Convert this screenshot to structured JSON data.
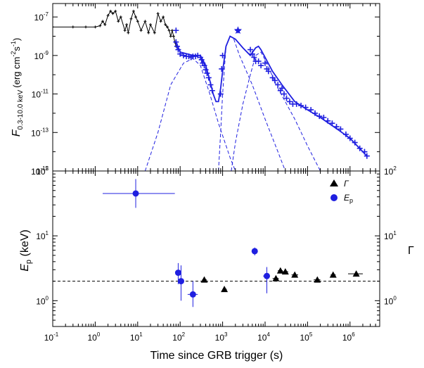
{
  "chart_data": [
    {
      "type": "line",
      "panel": "top",
      "xscale": "log",
      "yscale": "log",
      "xlim": [
        0.1,
        5000000
      ],
      "ylim": [
        1e-15,
        5e-07
      ],
      "ylabel": "F 0.3-10.0 keV (erg cm-2 s-1)",
      "ylabel_main": "F",
      "ylabel_sub": "0.3-10.0 keV",
      "ylabel_unit": "(erg cm",
      "ylabel_unit_exp1": "-2",
      "ylabel_unit_mid": "s",
      "ylabel_unit_exp2": "-1",
      "ylabel_unit_end": ")",
      "y_ticks": [
        {
          "value": 1e-15,
          "base": "10",
          "exp": "-15"
        },
        {
          "value": 1e-13,
          "base": "10",
          "exp": "-13"
        },
        {
          "value": 1e-11,
          "base": "10",
          "exp": "-11"
        },
        {
          "value": 1e-09,
          "base": "10",
          "exp": "-9"
        },
        {
          "value": 1e-07,
          "base": "10",
          "exp": "-7"
        }
      ],
      "series": [
        {
          "color": "#000000",
          "style": "line-with-markers",
          "points": [
            [
              0.1,
              3e-08
            ],
            [
              0.3,
              3e-08
            ],
            [
              0.6,
              3e-08
            ],
            [
              1.0,
              3e-08
            ],
            [
              1.3,
              3.5e-08
            ],
            [
              1.5,
              6e-08
            ],
            [
              1.7,
              4e-08
            ],
            [
              2.0,
              1.2e-07
            ],
            [
              2.3,
              2e-07
            ],
            [
              2.6,
              1.5e-07
            ],
            [
              3.0,
              2e-07
            ],
            [
              3.5,
              6e-08
            ],
            [
              4.0,
              1e-07
            ],
            [
              5.0,
              2e-08
            ],
            [
              5.5,
              4e-08
            ],
            [
              6.0,
              1.5e-08
            ],
            [
              7.0,
              8e-08
            ],
            [
              8.0,
              2e-07
            ],
            [
              9.0,
              1e-07
            ],
            [
              10,
              6e-08
            ],
            [
              12,
              2e-08
            ],
            [
              15,
              6e-08
            ],
            [
              18,
              1.5e-08
            ],
            [
              20,
              4e-08
            ],
            [
              25,
              1.5e-08
            ],
            [
              30,
              1.5e-07
            ],
            [
              35,
              6e-08
            ],
            [
              40,
              1e-07
            ],
            [
              45,
              4e-08
            ],
            [
              50,
              3e-08
            ],
            [
              55,
              2e-08
            ],
            [
              60,
              1e-08
            ],
            [
              65,
              2e-08
            ],
            [
              70,
              1e-08
            ],
            [
              75,
              5e-09
            ],
            [
              80,
              3e-09
            ]
          ]
        },
        {
          "color": "#1f1fe0",
          "style": "markers",
          "points": [
            [
              80,
              2e-08
            ],
            [
              80,
              5e-09
            ],
            [
              85,
              3e-09
            ],
            [
              90,
              2e-09
            ],
            [
              100,
              1.2e-09
            ],
            [
              120,
              1e-09
            ],
            [
              140,
              9e-10
            ],
            [
              160,
              9e-10
            ],
            [
              180,
              8e-10
            ],
            [
              200,
              9e-10
            ],
            [
              230,
              9e-10
            ],
            [
              260,
              1e-09
            ],
            [
              300,
              8e-10
            ],
            [
              320,
              6e-10
            ],
            [
              340,
              4e-10
            ],
            [
              370,
              3e-10
            ],
            [
              400,
              1.8e-10
            ],
            [
              430,
              1.2e-10
            ],
            [
              470,
              7e-11
            ],
            [
              520,
              3e-11
            ],
            [
              570,
              1.5e-11
            ],
            [
              900,
              1e-11
            ],
            [
              950,
              2e-10
            ],
            [
              1000,
              1e-09
            ],
            [
              2300,
              2e-08
            ],
            [
              4500,
              2e-09
            ],
            [
              5000,
              1.2e-09
            ],
            [
              5500,
              8e-10
            ],
            [
              6000,
              5e-10
            ],
            [
              7000,
              5e-10
            ],
            [
              8000,
              3e-10
            ],
            [
              10000,
              4e-10
            ],
            [
              11000,
              2e-10
            ],
            [
              12000,
              1.5e-10
            ],
            [
              15000,
              7e-11
            ],
            [
              17000,
              5e-11
            ],
            [
              20000,
              3e-11
            ],
            [
              23000,
              1.5e-11
            ],
            [
              25000,
              2e-11
            ],
            [
              28000,
              1e-11
            ],
            [
              32000,
              6e-12
            ],
            [
              38000,
              4e-12
            ],
            [
              45000,
              3e-12
            ],
            [
              55000,
              3e-12
            ],
            [
              70000,
              2.5e-12
            ],
            [
              90000,
              2e-12
            ],
            [
              120000,
              1.5e-12
            ],
            [
              150000,
              1e-12
            ],
            [
              190000,
              7e-13
            ],
            [
              240000,
              6e-13
            ],
            [
              300000,
              4e-13
            ],
            [
              380000,
              3e-13
            ],
            [
              480000,
              2e-13
            ],
            [
              600000,
              1.5e-13
            ],
            [
              800000,
              8e-14
            ],
            [
              1000000,
              5e-14
            ],
            [
              1300000,
              3e-14
            ],
            [
              1700000,
              1.5e-14
            ],
            [
              2200000,
              1e-14
            ],
            [
              2500000,
              6e-15
            ]
          ]
        },
        {
          "color": "#1f1fe0",
          "style": "solid-model",
          "points": [
            [
              80,
              5e-09
            ],
            [
              100,
              1.5e-09
            ],
            [
              200,
              1e-09
            ],
            [
              300,
              1e-09
            ],
            [
              400,
              3e-10
            ],
            [
              500,
              5e-11
            ],
            [
              600,
              1e-11
            ],
            [
              700,
              4e-12
            ],
            [
              800,
              4e-12
            ],
            [
              900,
              2e-11
            ],
            [
              1000,
              1.5e-10
            ],
            [
              1200,
              3e-09
            ],
            [
              1500,
              1e-08
            ],
            [
              2000,
              7e-09
            ],
            [
              3000,
              2.5e-09
            ],
            [
              4500,
              1e-09
            ],
            [
              6000,
              2.5e-09
            ],
            [
              7000,
              3e-09
            ],
            [
              8000,
              2e-09
            ],
            [
              10000,
              8e-10
            ],
            [
              15000,
              1.5e-10
            ],
            [
              25000,
              3e-11
            ],
            [
              50000,
              4e-12
            ],
            [
              100000,
              1.5e-12
            ],
            [
              200000,
              6e-13
            ],
            [
              500000,
              1.5e-13
            ],
            [
              1000000,
              5e-14
            ],
            [
              2500000,
              6e-15
            ]
          ]
        },
        {
          "color": "#1f1fe0",
          "style": "dashed-component",
          "points": [
            [
              15,
              1e-15
            ],
            [
              30,
              1e-13
            ],
            [
              60,
              3e-11
            ],
            [
              120,
              4e-10
            ],
            [
              200,
              7e-10
            ],
            [
              300,
              3e-10
            ],
            [
              500,
              1e-11
            ],
            [
              800,
              3e-13
            ],
            [
              1500,
              5e-15
            ],
            [
              2000,
              1e-15
            ]
          ]
        },
        {
          "color": "#1f1fe0",
          "style": "dashed-component",
          "points": [
            [
              800,
              1e-15
            ],
            [
              900,
              1e-13
            ],
            [
              1000,
              1e-11
            ],
            [
              1200,
              3e-09
            ],
            [
              1500,
              1e-08
            ],
            [
              1800,
              8e-09
            ],
            [
              2500,
              1e-09
            ],
            [
              5000,
              3e-11
            ],
            [
              10000,
              5e-13
            ],
            [
              20000,
              1e-14
            ],
            [
              30000,
              1e-15
            ]
          ]
        },
        {
          "color": "#1f1fe0",
          "style": "dashed-component",
          "points": [
            [
              1600,
              1e-15
            ],
            [
              2000,
              3e-14
            ],
            [
              3000,
              3e-12
            ],
            [
              4500,
              1e-10
            ],
            [
              6000,
              1e-09
            ],
            [
              8000,
              1.5e-09
            ],
            [
              10000,
              6e-10
            ],
            [
              20000,
              2e-11
            ],
            [
              50000,
              5e-13
            ],
            [
              100000,
              2e-14
            ],
            [
              200000,
              1e-15
            ]
          ]
        }
      ],
      "stars": [
        [
          2300,
          2e-08
        ]
      ]
    },
    {
      "type": "scatter",
      "panel": "bottom",
      "xscale": "log",
      "yscale": "log",
      "xlim": [
        0.1,
        5000000
      ],
      "ylim": [
        0.4,
        100
      ],
      "xlabel": "Time since GRB trigger (s)",
      "ylabel_main": "E",
      "ylabel_sub": "p",
      "ylabel_unit": " (keV)",
      "ylabel_right": "Γ",
      "x_ticks": [
        {
          "value": 0.1,
          "base": "10",
          "exp": "-1"
        },
        {
          "value": 1,
          "base": "10",
          "exp": "0"
        },
        {
          "value": 10,
          "base": "10",
          "exp": "1"
        },
        {
          "value": 100,
          "base": "10",
          "exp": "2"
        },
        {
          "value": 1000,
          "base": "10",
          "exp": "3"
        },
        {
          "value": 10000,
          "base": "10",
          "exp": "4"
        },
        {
          "value": 100000,
          "base": "10",
          "exp": "5"
        },
        {
          "value": 1000000,
          "base": "10",
          "exp": "6"
        }
      ],
      "y_ticks_left": [
        {
          "value": 1,
          "base": "10",
          "exp": "0"
        },
        {
          "value": 10,
          "base": "10",
          "exp": "1"
        },
        {
          "value": 100,
          "base": "10",
          "exp": "2"
        }
      ],
      "y_ticks_right": [
        {
          "value": 1,
          "base": "10",
          "exp": "0"
        },
        {
          "value": 10,
          "base": "10",
          "exp": "1"
        },
        {
          "value": 100,
          "base": "10",
          "exp": "2"
        }
      ],
      "reference_line": 2.0,
      "legend": [
        {
          "label": "Γ",
          "marker": "triangle",
          "color": "#000000"
        },
        {
          "label": "E",
          "label_sub": "p",
          "marker": "circle",
          "color": "#1f1fe0"
        }
      ],
      "series": [
        {
          "name": "Γ",
          "marker": "triangle",
          "color": "#000000",
          "points": [
            {
              "x": 370,
              "y": 2.1,
              "xerr": [
                330,
                420
              ]
            },
            {
              "x": 1100,
              "y": 1.5,
              "xerr": [
                1000,
                1250
              ]
            },
            {
              "x": 18000,
              "y": 2.2,
              "xerr": [
                15000,
                21000
              ]
            },
            {
              "x": 23000,
              "y": 2.9,
              "xerr": [
                20000,
                26000
              ]
            },
            {
              "x": 30000,
              "y": 2.8,
              "xerr": [
                26000,
                35000
              ]
            },
            {
              "x": 50000,
              "y": 2.5,
              "xerr": [
                42000,
                60000
              ]
            },
            {
              "x": 170000,
              "y": 2.1,
              "xerr": [
                140000,
                200000
              ]
            },
            {
              "x": 400000,
              "y": 2.5,
              "xerr": [
                350000,
                460000
              ]
            },
            {
              "x": 1400000,
              "y": 2.6,
              "xerr": [
                900000,
                2000000
              ]
            }
          ]
        },
        {
          "name": "E_p",
          "marker": "circle",
          "color": "#1f1fe0",
          "points": [
            {
              "x": 9,
              "y": 45,
              "xerr": [
                1.5,
                75
              ],
              "yerr": [
                27,
                75
              ]
            },
            {
              "x": 90,
              "y": 2.7,
              "xerr": [
                85,
                95
              ],
              "yerr": [
                1.8,
                3.8
              ]
            },
            {
              "x": 105,
              "y": 2.0,
              "xerr": [
                95,
                115
              ],
              "yerr": [
                1.0,
                3.5
              ]
            },
            {
              "x": 200,
              "y": 1.25,
              "xerr": [
                150,
                260
              ],
              "yerr": [
                0.8,
                2.0
              ]
            },
            {
              "x": 5700,
              "y": 5.8,
              "xerr": [
                5200,
                6200
              ],
              "yerr": [
                5.0,
                6.6
              ]
            },
            {
              "x": 11000,
              "y": 2.4,
              "xerr": [
                9000,
                13000
              ],
              "yerr": [
                1.3,
                3.3
              ]
            }
          ]
        }
      ]
    }
  ]
}
